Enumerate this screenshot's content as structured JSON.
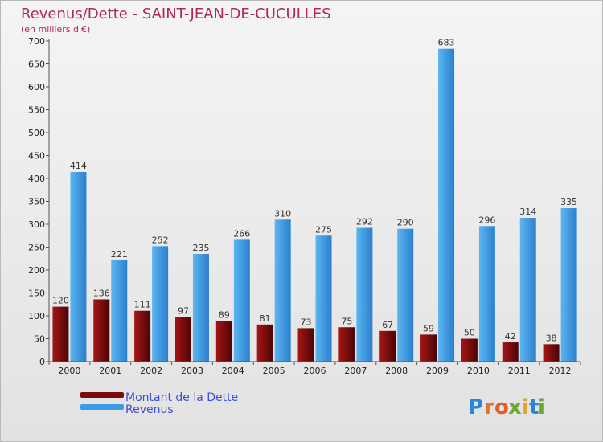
{
  "chart_data": {
    "type": "bar",
    "title": "Revenus/Dette - SAINT-JEAN-DE-CUCULLES",
    "subtitle": "(en milliers d'€)",
    "categories": [
      "2000",
      "2001",
      "2002",
      "2003",
      "2004",
      "2005",
      "2006",
      "2007",
      "2008",
      "2009",
      "2010",
      "2011",
      "2012"
    ],
    "series": [
      {
        "name": "Montant de la Dette",
        "color": "#7a0c0c",
        "values": [
          120,
          136,
          111,
          97,
          89,
          81,
          73,
          75,
          67,
          59,
          50,
          42,
          38
        ]
      },
      {
        "name": "Revenus",
        "color": "#3d9be6",
        "values": [
          414,
          221,
          252,
          235,
          266,
          310,
          275,
          292,
          290,
          683,
          296,
          314,
          335
        ]
      }
    ],
    "ylim": [
      0,
      700
    ],
    "yticks": [
      0,
      50,
      100,
      150,
      200,
      250,
      300,
      350,
      400,
      450,
      500,
      550,
      600,
      650,
      700
    ],
    "grid": false,
    "legend": "bottom-left"
  },
  "brand": {
    "letters": [
      "P",
      "r",
      "o",
      "x",
      "i",
      "t",
      "i"
    ],
    "colors": [
      "#2a86d6",
      "#e3742b",
      "#e35d2b",
      "#6aa833",
      "#e3a02b",
      "#2a86d6",
      "#6aa833"
    ]
  }
}
